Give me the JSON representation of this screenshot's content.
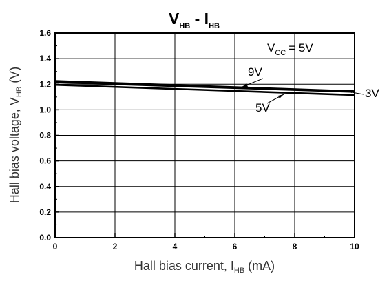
{
  "chart_data": {
    "type": "line",
    "title": {
      "main1": "V",
      "sub1": "HB",
      "sep": " - I",
      "sub2": "HB"
    },
    "xlabel": {
      "text": "Hall bias current, I",
      "sub": "HB",
      "unit": " (mA)"
    },
    "ylabel": {
      "text": "Hall bias voltage, V",
      "sub": "HB",
      "unit": " (V)"
    },
    "xlim": [
      0,
      10
    ],
    "ylim": [
      0,
      1.6
    ],
    "xticks": [
      "0",
      "2",
      "4",
      "6",
      "8",
      "10"
    ],
    "yticks": [
      "0.0",
      "0.2",
      "0.4",
      "0.6",
      "0.8",
      "1.0",
      "1.2",
      "1.4",
      "1.6"
    ],
    "grid": true,
    "series": [
      {
        "name": "9V",
        "x": [
          0,
          10
        ],
        "y": [
          1.225,
          1.145
        ]
      },
      {
        "name": "3V",
        "x": [
          0,
          10
        ],
        "y": [
          1.215,
          1.14
        ]
      },
      {
        "name": "5V",
        "x": [
          0,
          10
        ],
        "y": [
          1.195,
          1.115
        ]
      }
    ],
    "annotations": {
      "vcc": {
        "label": "V",
        "sub": "CC",
        "value": "=  5V"
      },
      "series_labels": [
        "9V",
        "3V",
        "5V"
      ]
    }
  }
}
